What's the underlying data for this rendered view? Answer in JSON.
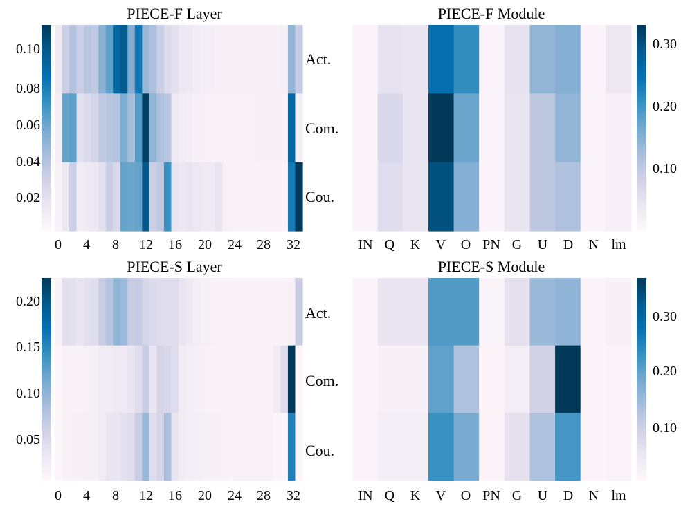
{
  "chart_data": [
    {
      "type": "heatmap",
      "id": "piece-f-layer",
      "title": "PIECE-F Layer",
      "x_tick_labels": [
        "0",
        "4",
        "8",
        "12",
        "16",
        "20",
        "24",
        "28",
        "32"
      ],
      "x_tick_values": [
        0,
        4,
        8,
        12,
        16,
        20,
        24,
        28,
        32
      ],
      "row_labels": [
        "Act.",
        "Com.",
        "Cou."
      ],
      "colorbar": {
        "side": "left",
        "range": [
          0.0,
          0.113
        ],
        "tick_labels": [
          "0.10",
          "0.08",
          "0.06",
          "0.04",
          "0.02"
        ],
        "tick_values": [
          0.1,
          0.08,
          0.06,
          0.04,
          0.02
        ]
      },
      "values": [
        [
          0.012,
          0.03,
          0.038,
          0.03,
          0.036,
          0.034,
          0.05,
          0.062,
          0.09,
          0.098,
          0.052,
          0.082,
          0.046,
          0.04,
          0.03,
          0.022,
          0.018,
          0.014,
          0.012,
          0.01,
          0.008,
          0.008,
          0.006,
          0.006,
          0.006,
          0.006,
          0.006,
          0.006,
          0.006,
          0.006,
          0.006,
          0.008,
          0.048,
          0.032
        ],
        [
          0.008,
          0.06,
          0.062,
          0.018,
          0.022,
          0.026,
          0.034,
          0.036,
          0.038,
          0.054,
          0.042,
          0.064,
          0.11,
          0.048,
          0.04,
          0.036,
          0.012,
          0.01,
          0.008,
          0.006,
          0.006,
          0.005,
          0.005,
          0.005,
          0.005,
          0.005,
          0.005,
          0.006,
          0.006,
          0.006,
          0.006,
          0.006,
          0.09,
          0.008
        ],
        [
          0.004,
          0.014,
          0.03,
          0.01,
          0.012,
          0.014,
          0.018,
          0.03,
          0.024,
          0.06,
          0.058,
          0.06,
          0.1,
          0.03,
          0.034,
          0.07,
          0.016,
          0.014,
          0.016,
          0.014,
          0.012,
          0.012,
          0.016,
          0.006,
          0.005,
          0.005,
          0.005,
          0.005,
          0.004,
          0.004,
          0.004,
          0.004,
          0.08,
          0.112
        ]
      ]
    },
    {
      "type": "heatmap",
      "id": "piece-f-module",
      "title": "PIECE-F Module",
      "x_tick_labels": [
        "IN",
        "Q",
        "K",
        "V",
        "O",
        "PN",
        "G",
        "U",
        "D",
        "N",
        "lm"
      ],
      "colorbar": {
        "side": "right",
        "range": [
          0.0,
          0.33
        ],
        "tick_labels": [
          "0.30",
          "0.20",
          "0.10"
        ],
        "tick_values": [
          0.3,
          0.2,
          0.1
        ]
      },
      "values": [
        [
          0.01,
          0.05,
          0.045,
          0.25,
          0.21,
          0.01,
          0.05,
          0.14,
          0.15,
          0.01,
          0.04
        ],
        [
          0.01,
          0.07,
          0.045,
          0.33,
          0.17,
          0.01,
          0.045,
          0.1,
          0.14,
          0.01,
          0.02
        ],
        [
          0.01,
          0.06,
          0.045,
          0.3,
          0.15,
          0.01,
          0.045,
          0.1,
          0.115,
          0.01,
          0.02
        ]
      ]
    },
    {
      "type": "heatmap",
      "id": "piece-s-layer",
      "title": "PIECE-S Layer",
      "x_tick_labels": [
        "0",
        "4",
        "8",
        "12",
        "16",
        "20",
        "24",
        "28",
        "32"
      ],
      "x_tick_values": [
        0,
        4,
        8,
        12,
        16,
        20,
        24,
        28,
        32
      ],
      "row_labels": [
        "Act.",
        "Com.",
        "Cou."
      ],
      "colorbar": {
        "side": "left",
        "range": [
          0.0,
          0.22
        ],
        "tick_labels": [
          "0.20",
          "0.15",
          "0.10",
          "0.05"
        ],
        "tick_values": [
          0.2,
          0.15,
          0.1,
          0.05
        ]
      },
      "values": [
        [
          0.01,
          0.038,
          0.036,
          0.03,
          0.036,
          0.04,
          0.06,
          0.072,
          0.095,
          0.088,
          0.06,
          0.062,
          0.05,
          0.044,
          0.04,
          0.04,
          0.04,
          0.03,
          0.022,
          0.018,
          0.014,
          0.012,
          0.01,
          0.01,
          0.008,
          0.008,
          0.008,
          0.008,
          0.008,
          0.008,
          0.008,
          0.008,
          0.012,
          0.06
        ],
        [
          0.004,
          0.01,
          0.01,
          0.01,
          0.012,
          0.014,
          0.02,
          0.02,
          0.024,
          0.024,
          0.03,
          0.04,
          0.06,
          0.03,
          0.05,
          0.046,
          0.04,
          0.02,
          0.016,
          0.014,
          0.012,
          0.01,
          0.01,
          0.01,
          0.008,
          0.008,
          0.008,
          0.008,
          0.008,
          0.01,
          0.02,
          0.04,
          0.22,
          0.004
        ],
        [
          0.004,
          0.01,
          0.012,
          0.012,
          0.014,
          0.014,
          0.02,
          0.03,
          0.03,
          0.034,
          0.04,
          0.06,
          0.09,
          0.04,
          0.05,
          0.08,
          0.03,
          0.02,
          0.018,
          0.016,
          0.014,
          0.012,
          0.012,
          0.01,
          0.008,
          0.008,
          0.008,
          0.008,
          0.008,
          0.008,
          0.006,
          0.006,
          0.15,
          0.006
        ]
      ]
    },
    {
      "type": "heatmap",
      "id": "piece-s-module",
      "title": "PIECE-S Module",
      "x_tick_labels": [
        "IN",
        "Q",
        "K",
        "V",
        "O",
        "PN",
        "G",
        "U",
        "D",
        "N",
        "lm"
      ],
      "colorbar": {
        "side": "right",
        "range": [
          0.0,
          0.37
        ],
        "tick_labels": [
          "0.30",
          "0.20",
          "0.10"
        ],
        "tick_values": [
          0.3,
          0.2,
          0.1
        ]
      },
      "values": [
        [
          0.01,
          0.05,
          0.05,
          0.21,
          0.21,
          0.01,
          0.06,
          0.15,
          0.16,
          0.01,
          0.02
        ],
        [
          0.008,
          0.02,
          0.02,
          0.2,
          0.13,
          0.008,
          0.03,
          0.09,
          0.37,
          0.008,
          0.012
        ],
        [
          0.008,
          0.03,
          0.03,
          0.23,
          0.18,
          0.008,
          0.06,
          0.13,
          0.22,
          0.008,
          0.012
        ]
      ]
    }
  ]
}
